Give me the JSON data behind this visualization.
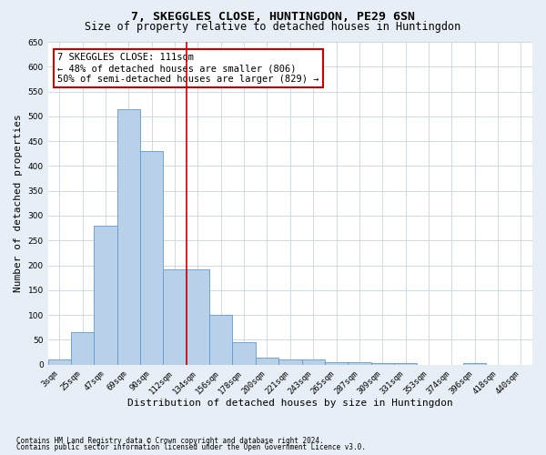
{
  "title": "7, SKEGGLES CLOSE, HUNTINGDON, PE29 6SN",
  "subtitle": "Size of property relative to detached houses in Huntingdon",
  "xlabel": "Distribution of detached houses by size in Huntingdon",
  "ylabel": "Number of detached properties",
  "categories": [
    "3sqm",
    "25sqm",
    "47sqm",
    "69sqm",
    "90sqm",
    "112sqm",
    "134sqm",
    "156sqm",
    "178sqm",
    "200sqm",
    "221sqm",
    "243sqm",
    "265sqm",
    "287sqm",
    "309sqm",
    "331sqm",
    "353sqm",
    "374sqm",
    "396sqm",
    "418sqm",
    "440sqm"
  ],
  "values": [
    10,
    65,
    280,
    515,
    430,
    192,
    192,
    100,
    45,
    15,
    10,
    10,
    5,
    5,
    3,
    3,
    0,
    0,
    3,
    0,
    0
  ],
  "bar_color": "#b8d0e8",
  "bar_edge_color": "#5b9bd5",
  "vline_x_idx": 5.5,
  "vline_color": "#cc0000",
  "annotation_text": "7 SKEGGLES CLOSE: 111sqm\n← 48% of detached houses are smaller (806)\n50% of semi-detached houses are larger (829) →",
  "annotation_box_color": "#ffffff",
  "annotation_box_edge": "#cc0000",
  "ylim": [
    0,
    650
  ],
  "yticks": [
    0,
    50,
    100,
    150,
    200,
    250,
    300,
    350,
    400,
    450,
    500,
    550,
    600,
    650
  ],
  "footnote1": "Contains HM Land Registry data © Crown copyright and database right 2024.",
  "footnote2": "Contains public sector information licensed under the Open Government Licence v3.0.",
  "bg_color": "#e8eef5",
  "plot_bg_color": "#ffffff",
  "grid_color": "#c8d4e0",
  "title_fontsize": 9.5,
  "subtitle_fontsize": 8.5,
  "tick_fontsize": 6.5,
  "label_fontsize": 8,
  "annotation_fontsize": 7.5,
  "footnote_fontsize": 5.5
}
